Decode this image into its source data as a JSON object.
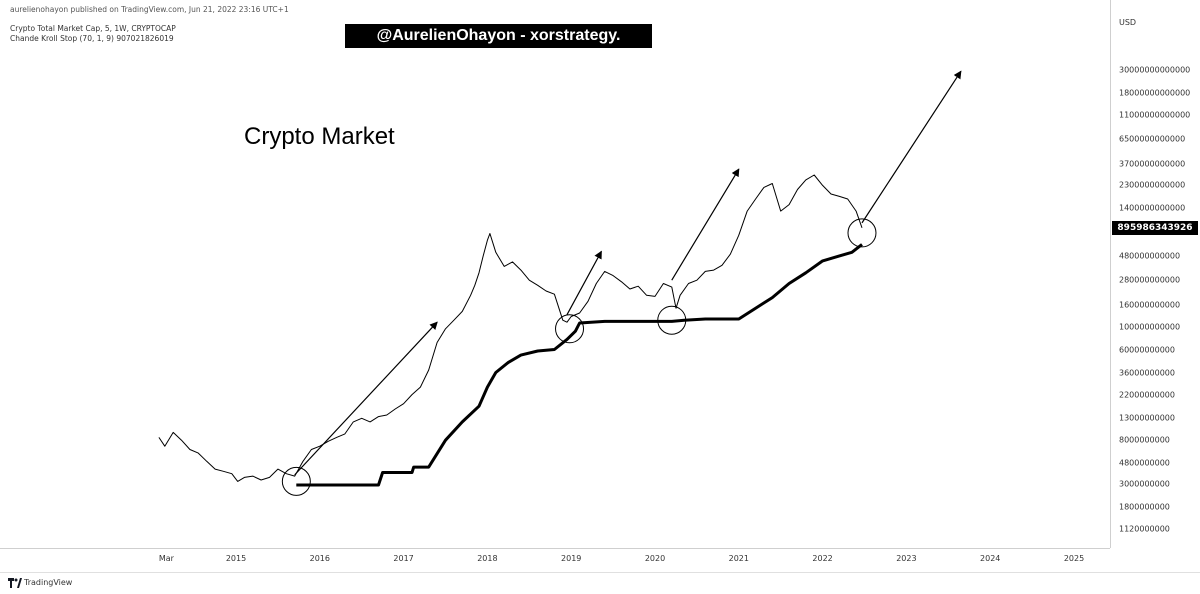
{
  "header": {
    "publisher": "aurelienohayon published on TradingView.com, Jun 21, 2022 23:16 UTC+1",
    "symbol": "Crypto Total Market Cap, 5, 1W, CRYPTOCAP",
    "indicator": "Chande Kroll Stop (70, 1, 9)  907021826019"
  },
  "banner": "@AurelienOhayon - xorstrategy.",
  "annotation": "Crypto Market",
  "footer": {
    "brand": "TradingView"
  },
  "colors": {
    "price": "#000000",
    "stop": "#000000",
    "banner_bg": "#000000",
    "background": "#ffffff"
  },
  "chart_data": {
    "type": "line",
    "scale": "log",
    "currency": "USD",
    "last_price": {
      "label": "895986343926",
      "value": 895986343926
    },
    "y_ticks": [
      {
        "label": "30000000000000",
        "value": 30000000000000
      },
      {
        "label": "18000000000000",
        "value": 18000000000000
      },
      {
        "label": "11000000000000",
        "value": 11000000000000
      },
      {
        "label": "6500000000000",
        "value": 6500000000000
      },
      {
        "label": "3700000000000",
        "value": 3700000000000
      },
      {
        "label": "2300000000000",
        "value": 2300000000000
      },
      {
        "label": "1400000000000",
        "value": 1400000000000
      },
      {
        "label": "480000000000",
        "value": 480000000000
      },
      {
        "label": "280000000000",
        "value": 280000000000
      },
      {
        "label": "160000000000",
        "value": 160000000000
      },
      {
        "label": "100000000000",
        "value": 100000000000
      },
      {
        "label": "60000000000",
        "value": 60000000000
      },
      {
        "label": "36000000000",
        "value": 36000000000
      },
      {
        "label": "22000000000",
        "value": 22000000000
      },
      {
        "label": "13000000000",
        "value": 13000000000
      },
      {
        "label": "8000000000",
        "value": 8000000000
      },
      {
        "label": "4800000000",
        "value": 4800000000
      },
      {
        "label": "3000000000",
        "value": 3000000000
      },
      {
        "label": "1800000000",
        "value": 1800000000
      },
      {
        "label": "1120000000",
        "value": 1120000000
      }
    ],
    "x_ticks": [
      {
        "label": "Mar",
        "value": 2014.17
      },
      {
        "label": "2015",
        "value": 2015
      },
      {
        "label": "2016",
        "value": 2016
      },
      {
        "label": "2017",
        "value": 2017
      },
      {
        "label": "2018",
        "value": 2018
      },
      {
        "label": "2019",
        "value": 2019
      },
      {
        "label": "2020",
        "value": 2020
      },
      {
        "label": "2021",
        "value": 2021
      },
      {
        "label": "2022",
        "value": 2022
      },
      {
        "label": "2023",
        "value": 2023
      },
      {
        "label": "2024",
        "value": 2024
      },
      {
        "label": "2025",
        "value": 2025
      }
    ],
    "series": [
      {
        "key": "price",
        "x": [
          2014.08,
          2014.15,
          2014.25,
          2014.35,
          2014.45,
          2014.55,
          2014.65,
          2014.75,
          2014.85,
          2014.95,
          2015.02,
          2015.1,
          2015.2,
          2015.3,
          2015.4,
          2015.5,
          2015.6,
          2015.7,
          2015.8,
          2015.9,
          2016.0,
          2016.1,
          2016.2,
          2016.3,
          2016.4,
          2016.5,
          2016.6,
          2016.7,
          2016.8,
          2016.9,
          2017.0,
          2017.1,
          2017.2,
          2017.3,
          2017.4,
          2017.5,
          2017.6,
          2017.7,
          2017.8,
          2017.85,
          2017.9,
          2017.95,
          2018.0,
          2018.03,
          2018.1,
          2018.2,
          2018.3,
          2018.4,
          2018.5,
          2018.6,
          2018.7,
          2018.8,
          2018.9,
          2018.95,
          2019.0,
          2019.1,
          2019.2,
          2019.3,
          2019.4,
          2019.5,
          2019.6,
          2019.7,
          2019.8,
          2019.9,
          2020.0,
          2020.1,
          2020.2,
          2020.25,
          2020.3,
          2020.4,
          2020.5,
          2020.6,
          2020.7,
          2020.8,
          2020.9,
          2021.0,
          2021.1,
          2021.2,
          2021.3,
          2021.4,
          2021.5,
          2021.6,
          2021.7,
          2021.8,
          2021.9,
          2022.0,
          2022.1,
          2022.2,
          2022.3,
          2022.4,
          2022.47
        ],
        "values": [
          8500000000,
          7000000000,
          9500000000,
          8000000000,
          6500000000,
          6000000000,
          5000000000,
          4200000000,
          4000000000,
          3800000000,
          3200000000,
          3500000000,
          3600000000,
          3300000000,
          3500000000,
          4200000000,
          3800000000,
          3600000000,
          5000000000,
          6500000000,
          7000000000,
          7800000000,
          8500000000,
          9200000000,
          12000000000,
          13000000000,
          12000000000,
          13500000000,
          14000000000,
          16000000000,
          18000000000,
          22000000000,
          26000000000,
          38000000000,
          70000000000,
          95000000000,
          115000000000,
          140000000000,
          200000000000,
          250000000000,
          330000000000,
          480000000000,
          680000000000,
          790000000000,
          520000000000,
          380000000000,
          420000000000,
          350000000000,
          280000000000,
          250000000000,
          220000000000,
          205000000000,
          115000000000,
          110000000000,
          125000000000,
          135000000000,
          175000000000,
          260000000000,
          340000000000,
          310000000000,
          270000000000,
          230000000000,
          245000000000,
          200000000000,
          195000000000,
          260000000000,
          240000000000,
          150000000000,
          200000000000,
          260000000000,
          280000000000,
          340000000000,
          350000000000,
          390000000000,
          500000000000,
          760000000000,
          1300000000000,
          1700000000000,
          2200000000000,
          2400000000000,
          1300000000000,
          1500000000000,
          2100000000000,
          2600000000000,
          2900000000000,
          2300000000000,
          1900000000000,
          1800000000000,
          1700000000000,
          1300000000000,
          895986343926
        ]
      },
      {
        "key": "stop",
        "x": [
          2015.72,
          2016.2,
          2016.7,
          2016.75,
          2017.1,
          2017.12,
          2017.3,
          2017.5,
          2017.7,
          2017.9,
          2018.0,
          2018.1,
          2018.25,
          2018.4,
          2018.6,
          2018.8,
          2018.95,
          2019.05,
          2019.1,
          2019.4,
          2019.8,
          2020.2,
          2020.35,
          2020.6,
          2020.8,
          2021.0,
          2021.2,
          2021.4,
          2021.6,
          2021.8,
          2022.0,
          2022.2,
          2022.35,
          2022.47
        ],
        "values": [
          2950000000,
          2950000000,
          2950000000,
          3900000000,
          3900000000,
          4400000000,
          4400000000,
          8000000000,
          12000000000,
          17000000000,
          26000000000,
          36000000000,
          45000000000,
          53000000000,
          58000000000,
          60000000000,
          75000000000,
          90000000000,
          108000000000,
          112000000000,
          112000000000,
          112000000000,
          115000000000,
          118000000000,
          118000000000,
          118000000000,
          150000000000,
          190000000000,
          260000000000,
          330000000000,
          430000000000,
          480000000000,
          520000000000,
          620000000000
        ]
      }
    ],
    "arrows": [
      {
        "from": [
          2015.7,
          3700000000
        ],
        "to": [
          2017.4,
          110000000000
        ]
      },
      {
        "from": [
          2018.95,
          130000000000
        ],
        "to": [
          2019.36,
          530000000000
        ]
      },
      {
        "from": [
          2020.2,
          280000000000
        ],
        "to": [
          2021.0,
          3300000000000
        ]
      },
      {
        "from": [
          2022.47,
          1000000000000
        ],
        "to": [
          2023.65,
          29000000000000
        ]
      }
    ],
    "circles": [
      {
        "x": 2015.72,
        "y": 3200000000
      },
      {
        "x": 2018.98,
        "y": 95000000000
      },
      {
        "x": 2020.2,
        "y": 115000000000
      },
      {
        "x": 2022.47,
        "y": 800000000000
      }
    ]
  }
}
